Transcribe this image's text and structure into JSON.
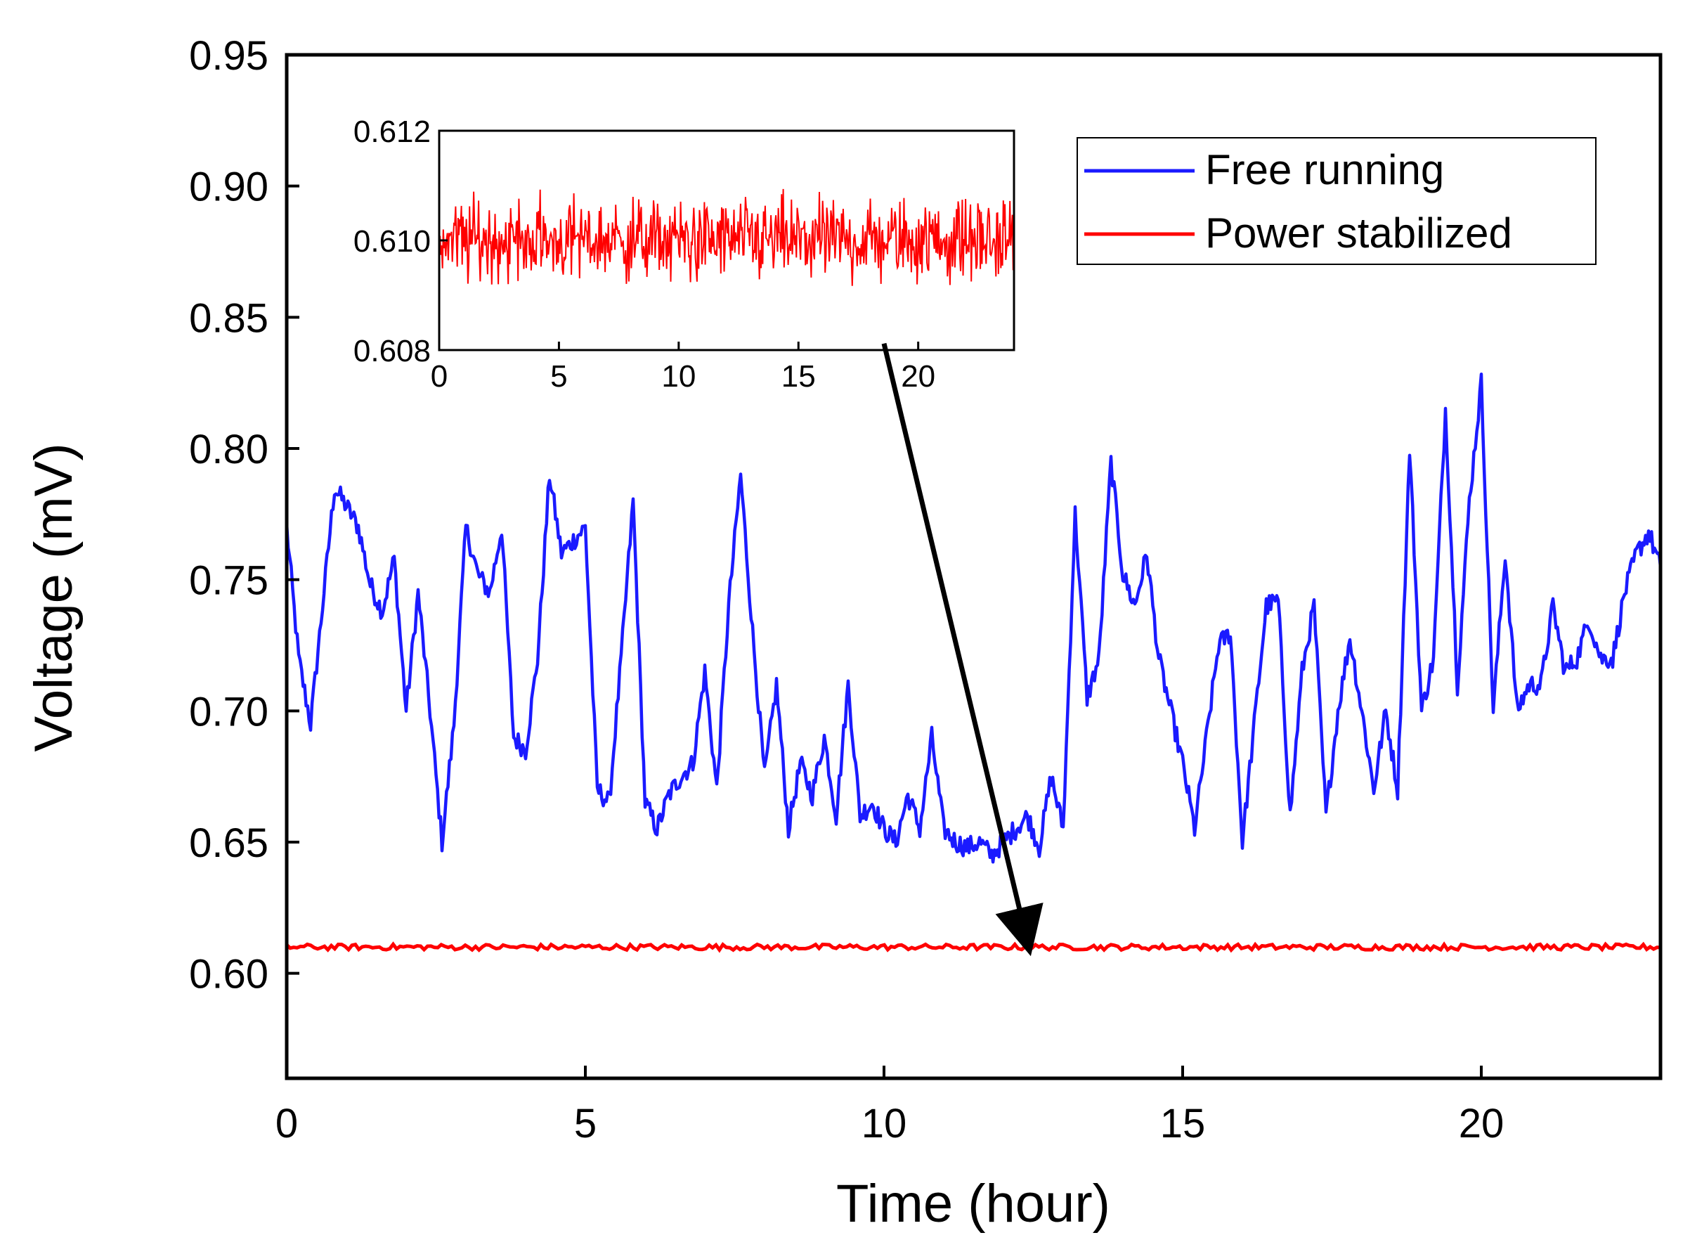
{
  "chart_data": [
    {
      "type": "line",
      "title": "",
      "xlabel": "Time (hour)",
      "ylabel": "Voltage (mV)",
      "xlim": [
        0,
        23
      ],
      "ylim": [
        0.56,
        0.95
      ],
      "xticks": [
        0,
        5,
        10,
        15,
        20
      ],
      "xtick_labels": [
        "0",
        "5",
        "10",
        "15",
        "20"
      ],
      "yticks": [
        0.6,
        0.65,
        0.7,
        0.75,
        0.8,
        0.85,
        0.9,
        0.95
      ],
      "ytick_labels": [
        "0.60",
        "0.65",
        "0.70",
        "0.75",
        "0.80",
        "0.85",
        "0.90",
        "0.95"
      ],
      "grid": false,
      "legend_position": "top-right",
      "series": [
        {
          "name": "Free running",
          "color": "#1a1aff",
          "x": [
            0,
            0.2,
            0.4,
            0.6,
            0.8,
            1.0,
            1.2,
            1.4,
            1.6,
            1.8,
            2.0,
            2.2,
            2.4,
            2.6,
            2.8,
            3.0,
            3.2,
            3.4,
            3.6,
            3.8,
            4.0,
            4.2,
            4.4,
            4.6,
            4.8,
            5.0,
            5.2,
            5.4,
            5.6,
            5.8,
            6.0,
            6.2,
            6.4,
            6.6,
            6.8,
            7.0,
            7.2,
            7.4,
            7.6,
            7.8,
            8.0,
            8.2,
            8.4,
            8.6,
            8.8,
            9.0,
            9.2,
            9.4,
            9.6,
            9.8,
            10.0,
            10.2,
            10.4,
            10.6,
            10.8,
            11.0,
            11.2,
            11.4,
            11.6,
            11.8,
            12.0,
            12.2,
            12.4,
            12.6,
            12.8,
            13.0,
            13.2,
            13.4,
            13.6,
            13.8,
            14.0,
            14.2,
            14.4,
            14.6,
            14.8,
            15.0,
            15.2,
            15.4,
            15.6,
            15.8,
            16.0,
            16.2,
            16.4,
            16.6,
            16.8,
            17.0,
            17.2,
            17.4,
            17.6,
            17.8,
            18.0,
            18.2,
            18.4,
            18.6,
            18.8,
            19.0,
            19.2,
            19.4,
            19.6,
            19.8,
            20.0,
            20.2,
            20.4,
            20.6,
            20.8,
            21.0,
            21.2,
            21.4,
            21.6,
            21.8,
            22.0,
            22.2,
            22.4,
            22.6,
            22.8,
            23.0
          ],
          "values": [
            0.77,
            0.72,
            0.695,
            0.74,
            0.785,
            0.778,
            0.77,
            0.748,
            0.738,
            0.758,
            0.7,
            0.745,
            0.7,
            0.65,
            0.695,
            0.77,
            0.752,
            0.745,
            0.77,
            0.69,
            0.685,
            0.72,
            0.79,
            0.76,
            0.765,
            0.77,
            0.67,
            0.665,
            0.72,
            0.78,
            0.665,
            0.655,
            0.668,
            0.675,
            0.68,
            0.715,
            0.67,
            0.74,
            0.79,
            0.73,
            0.675,
            0.71,
            0.655,
            0.68,
            0.668,
            0.69,
            0.66,
            0.71,
            0.66,
            0.665,
            0.655,
            0.65,
            0.668,
            0.655,
            0.69,
            0.655,
            0.65,
            0.648,
            0.65,
            0.645,
            0.65,
            0.655,
            0.66,
            0.648,
            0.675,
            0.655,
            0.775,
            0.705,
            0.72,
            0.795,
            0.752,
            0.74,
            0.76,
            0.72,
            0.7,
            0.68,
            0.655,
            0.69,
            0.725,
            0.73,
            0.65,
            0.695,
            0.74,
            0.742,
            0.66,
            0.715,
            0.74,
            0.66,
            0.7,
            0.728,
            0.7,
            0.67,
            0.7,
            0.67,
            0.8,
            0.7,
            0.72,
            0.815,
            0.71,
            0.78,
            0.825,
            0.7,
            0.76,
            0.7,
            0.71,
            0.71,
            0.74,
            0.715,
            0.72,
            0.735,
            0.72,
            0.72,
            0.745,
            0.76,
            0.768,
            0.755
          ]
        },
        {
          "name": "Power stabilized",
          "color": "#ff0000",
          "mean": 0.61,
          "x": [
            0,
            23
          ]
        }
      ],
      "annotations": [
        {
          "type": "arrow",
          "from": [
            10.0,
            0.84
          ],
          "to": [
            12.4,
            0.612
          ]
        }
      ]
    },
    {
      "type": "line",
      "title": "",
      "xlabel": "",
      "ylabel": "",
      "xlim": [
        0,
        24
      ],
      "ylim": [
        0.608,
        0.612
      ],
      "xticks": [
        0,
        5,
        10,
        15,
        20
      ],
      "xtick_labels": [
        "0",
        "5",
        "10",
        "15",
        "20"
      ],
      "yticks": [
        0.608,
        0.61,
        0.612
      ],
      "ytick_labels": [
        "0.608",
        "0.610",
        "0.612"
      ],
      "grid": false,
      "series": [
        {
          "name": "Power stabilized",
          "color": "#ff0000",
          "mean": 0.6099,
          "noise_range": [
            0.6089,
            0.6111
          ],
          "x": [
            0,
            24
          ]
        }
      ]
    }
  ],
  "legend": {
    "items": [
      {
        "label": "Free running",
        "color": "#1a1aff"
      },
      {
        "label": "Power stabilized",
        "color": "#ff0000"
      }
    ]
  }
}
